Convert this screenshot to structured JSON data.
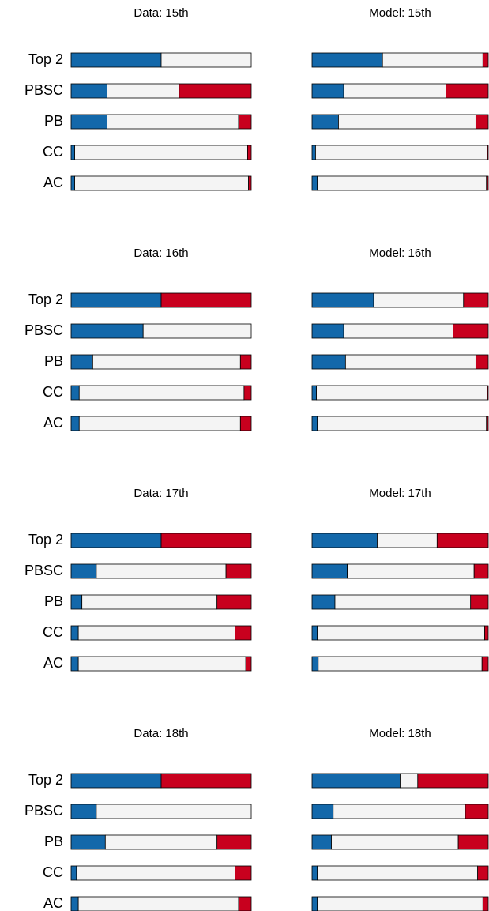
{
  "chart_data": [
    {
      "type": "bar",
      "orientation": "horizontal",
      "stacked": true,
      "title": "Data: 15th",
      "categories": [
        "Top 2",
        "PBSC",
        "PB",
        "CC",
        "AC"
      ],
      "series": [
        {
          "color": "#1368aa",
          "values": [
            0.5,
            0.2,
            0.2,
            0.02,
            0.02
          ]
        },
        {
          "color": "#f4f4f4",
          "values": [
            0.5,
            0.4,
            0.73,
            0.96,
            0.965
          ]
        },
        {
          "color": "#c8001e",
          "values": [
            0,
            0.4,
            0.07,
            0.02,
            0.015
          ]
        }
      ]
    },
    {
      "type": "bar",
      "orientation": "horizontal",
      "stacked": true,
      "title": "Model: 15th",
      "series": [
        {
          "color": "#1368aa",
          "values": [
            0.4,
            0.18,
            0.15,
            0.02,
            0.03
          ]
        },
        {
          "color": "#f4f4f4",
          "values": [
            0.57,
            0.58,
            0.78,
            0.975,
            0.96
          ]
        },
        {
          "color": "#c8001e",
          "values": [
            0.03,
            0.24,
            0.07,
            0.005,
            0.01
          ]
        }
      ]
    },
    {
      "type": "bar",
      "orientation": "horizontal",
      "stacked": true,
      "title": "Data: 16th",
      "categories": [
        "Top 2",
        "PBSC",
        "PB",
        "CC",
        "AC"
      ],
      "series": [
        {
          "color": "#1368aa",
          "values": [
            0.5,
            0.4,
            0.12,
            0.045,
            0.045
          ]
        },
        {
          "color": "#f4f4f4",
          "values": [
            0,
            0.6,
            0.82,
            0.915,
            0.895
          ]
        },
        {
          "color": "#c8001e",
          "values": [
            0.5,
            0,
            0.06,
            0.04,
            0.06
          ]
        }
      ]
    },
    {
      "type": "bar",
      "orientation": "horizontal",
      "stacked": true,
      "title": "Model: 16th",
      "series": [
        {
          "color": "#1368aa",
          "values": [
            0.35,
            0.18,
            0.19,
            0.025,
            0.03
          ]
        },
        {
          "color": "#f4f4f4",
          "values": [
            0.51,
            0.62,
            0.74,
            0.97,
            0.96
          ]
        },
        {
          "color": "#c8001e",
          "values": [
            0.14,
            0.2,
            0.07,
            0.005,
            0.01
          ]
        }
      ]
    },
    {
      "type": "bar",
      "orientation": "horizontal",
      "stacked": true,
      "title": "Data: 17th",
      "categories": [
        "Top 2",
        "PBSC",
        "PB",
        "CC",
        "AC"
      ],
      "series": [
        {
          "color": "#1368aa",
          "values": [
            0.5,
            0.14,
            0.06,
            0.04,
            0.04
          ]
        },
        {
          "color": "#f4f4f4",
          "values": [
            0,
            0.72,
            0.75,
            0.87,
            0.93
          ]
        },
        {
          "color": "#c8001e",
          "values": [
            0.5,
            0.14,
            0.19,
            0.09,
            0.03
          ]
        }
      ]
    },
    {
      "type": "bar",
      "orientation": "horizontal",
      "stacked": true,
      "title": "Model: 17th",
      "series": [
        {
          "color": "#1368aa",
          "values": [
            0.37,
            0.2,
            0.13,
            0.03,
            0.035
          ]
        },
        {
          "color": "#f4f4f4",
          "values": [
            0.34,
            0.72,
            0.77,
            0.95,
            0.93
          ]
        },
        {
          "color": "#c8001e",
          "values": [
            0.29,
            0.08,
            0.1,
            0.02,
            0.035
          ]
        }
      ]
    },
    {
      "type": "bar",
      "orientation": "horizontal",
      "stacked": true,
      "title": "Data: 18th",
      "categories": [
        "Top 2",
        "PBSC",
        "PB",
        "CC",
        "AC"
      ],
      "series": [
        {
          "color": "#1368aa",
          "values": [
            0.5,
            0.14,
            0.19,
            0.03,
            0.04
          ]
        },
        {
          "color": "#f4f4f4",
          "values": [
            0,
            0.86,
            0.62,
            0.88,
            0.89
          ]
        },
        {
          "color": "#c8001e",
          "values": [
            0.5,
            0,
            0.19,
            0.09,
            0.07
          ]
        }
      ]
    },
    {
      "type": "bar",
      "orientation": "horizontal",
      "stacked": true,
      "title": "Model: 18th",
      "series": [
        {
          "color": "#1368aa",
          "values": [
            0.5,
            0.12,
            0.11,
            0.03,
            0.03
          ]
        },
        {
          "color": "#f4f4f4",
          "values": [
            0.1,
            0.75,
            0.72,
            0.91,
            0.94
          ]
        },
        {
          "color": "#c8001e",
          "values": [
            0.4,
            0.13,
            0.17,
            0.06,
            0.03
          ]
        }
      ]
    }
  ]
}
